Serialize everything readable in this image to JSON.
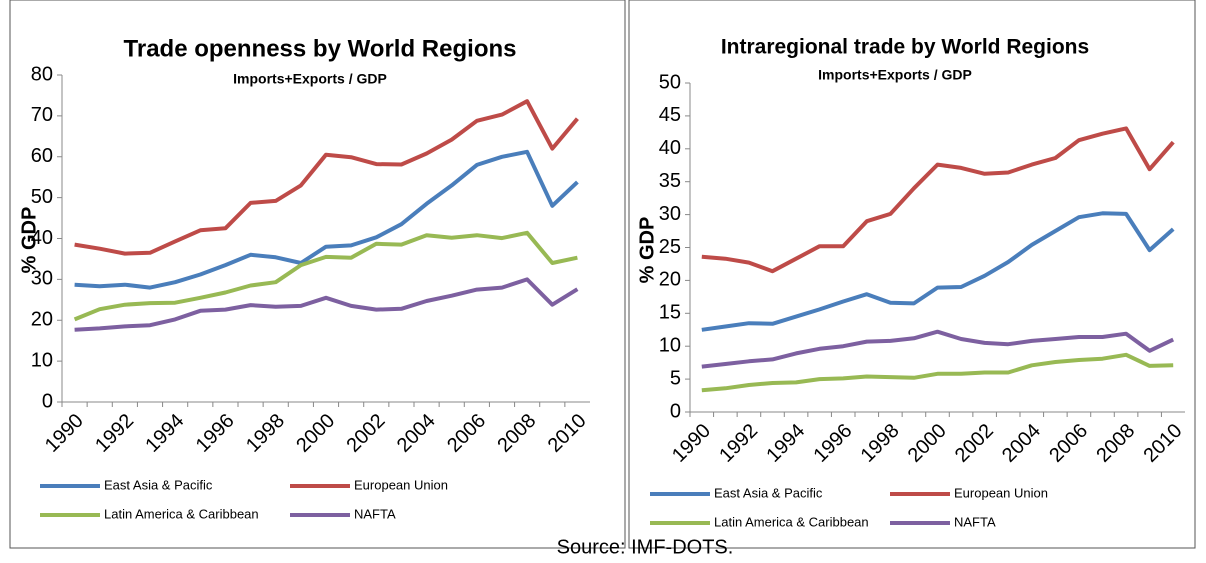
{
  "chart_data": [
    {
      "type": "line",
      "title": "Trade openness by World Regions",
      "subtitle": "Imports+Exports / GDP",
      "y_label": "% GDP",
      "categories": [
        "1990",
        null,
        "1992",
        null,
        "1994",
        null,
        "1996",
        null,
        "1998",
        null,
        "2000",
        null,
        "2002",
        null,
        "2004",
        null,
        "2006",
        null,
        "2008",
        null,
        "2010"
      ],
      "ylim": [
        0,
        80
      ],
      "yticks": [
        0,
        10,
        20,
        30,
        40,
        50,
        60,
        70,
        80
      ],
      "grid": false,
      "series": [
        {
          "name": "East Asia & Pacific",
          "color": "#4a7ebb",
          "values": [
            28.7,
            28.3,
            28.7,
            28.0,
            29.3,
            31.2,
            33.5,
            36.0,
            35.4,
            34.0,
            38.0,
            38.3,
            40.3,
            43.5,
            48.5,
            53.0,
            58.0,
            60.0,
            61.2,
            48.0,
            53.8
          ]
        },
        {
          "name": "European Union",
          "color": "#be4b48",
          "values": [
            38.5,
            37.5,
            36.3,
            36.5,
            39.3,
            42.0,
            42.5,
            48.7,
            49.2,
            53.0,
            60.5,
            59.9,
            58.2,
            58.1,
            60.8,
            64.2,
            68.8,
            70.3,
            73.6,
            62.0,
            69.3
          ]
        },
        {
          "name": "Latin America & Caribbean",
          "color": "#98b954",
          "values": [
            20.2,
            22.7,
            23.8,
            24.2,
            24.3,
            25.5,
            26.8,
            28.5,
            29.3,
            33.5,
            35.5,
            35.3,
            38.7,
            38.5,
            40.8,
            40.2,
            40.8,
            40.1,
            41.4,
            34.0,
            35.3
          ]
        },
        {
          "name": "NAFTA",
          "color": "#7d60a0",
          "values": [
            17.7,
            18.0,
            18.5,
            18.8,
            20.2,
            22.3,
            22.6,
            23.7,
            23.3,
            23.5,
            25.5,
            23.5,
            22.6,
            22.8,
            24.7,
            26.0,
            27.5,
            28.0,
            30.0,
            23.8,
            27.6
          ]
        }
      ]
    },
    {
      "type": "line",
      "title": "Intraregional trade by World Regions",
      "subtitle": "Imports+Exports / GDP",
      "y_label": "% GDP",
      "categories": [
        "1990",
        null,
        "1992",
        null,
        "1994",
        null,
        "1996",
        null,
        "1998",
        null,
        "2000",
        null,
        "2002",
        null,
        "2004",
        null,
        "2006",
        null,
        "2008",
        null,
        "2010"
      ],
      "ylim": [
        0,
        50
      ],
      "yticks": [
        0,
        5,
        10,
        15,
        20,
        25,
        30,
        35,
        40,
        45,
        50
      ],
      "grid": false,
      "series": [
        {
          "name": "East Asia & Pacific",
          "color": "#4a7ebb",
          "values": [
            12.5,
            13.0,
            13.5,
            13.4,
            14.5,
            15.6,
            16.8,
            17.9,
            16.6,
            16.5,
            18.9,
            19.0,
            20.7,
            22.8,
            25.4,
            27.5,
            29.6,
            30.2,
            30.1,
            24.6,
            27.8
          ]
        },
        {
          "name": "European Union",
          "color": "#be4b48",
          "values": [
            23.6,
            23.3,
            22.7,
            21.4,
            23.3,
            25.2,
            25.2,
            29.0,
            30.1,
            34.0,
            37.6,
            37.1,
            36.2,
            36.4,
            37.6,
            38.6,
            41.3,
            42.3,
            43.1,
            36.9,
            41.0
          ]
        },
        {
          "name": "Latin America & Caribbean",
          "color": "#98b954",
          "values": [
            3.3,
            3.6,
            4.1,
            4.4,
            4.5,
            5.0,
            5.1,
            5.4,
            5.3,
            5.2,
            5.8,
            5.8,
            6.0,
            6.0,
            7.1,
            7.6,
            7.9,
            8.1,
            8.7,
            7.0,
            7.1
          ]
        },
        {
          "name": "NAFTA",
          "color": "#7d60a0",
          "values": [
            6.9,
            7.3,
            7.7,
            8.0,
            8.9,
            9.6,
            10.0,
            10.7,
            10.8,
            11.2,
            12.2,
            11.1,
            10.5,
            10.3,
            10.8,
            11.1,
            11.4,
            11.4,
            11.9,
            9.3,
            11.0
          ]
        }
      ]
    }
  ],
  "source": "Source: IMF-DOTS."
}
